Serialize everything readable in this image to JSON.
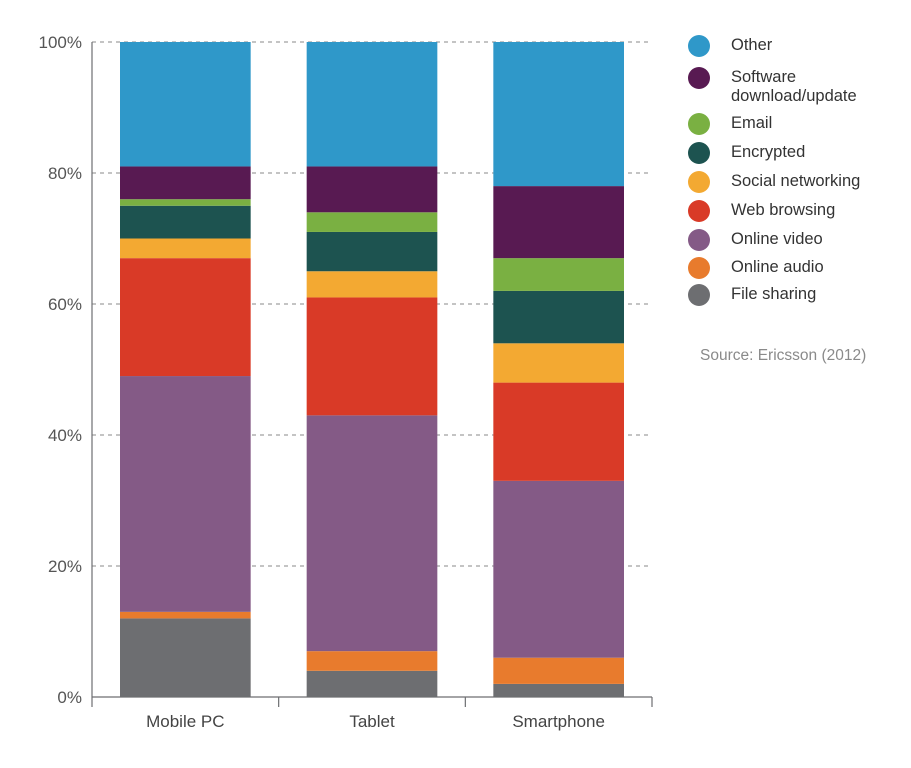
{
  "chart_data": {
    "type": "bar",
    "stacked": true,
    "title": "",
    "xlabel": "",
    "ylabel": "",
    "ylim": [
      0,
      100
    ],
    "yticks": [
      "0%",
      "20%",
      "40%",
      "60%",
      "80%",
      "100%"
    ],
    "grid": "horizontal dashed",
    "legend_position": "right",
    "categories": [
      "Mobile PC",
      "Tablet",
      "Smartphone"
    ],
    "series": [
      {
        "name": "File sharing",
        "color": "#6d6e71",
        "values": [
          12,
          4,
          2
        ]
      },
      {
        "name": "Online audio",
        "color": "#e87b2d",
        "values": [
          1,
          3,
          4
        ]
      },
      {
        "name": "Online video",
        "color": "#845a86",
        "values": [
          36,
          36,
          27
        ]
      },
      {
        "name": "Web browsing",
        "color": "#d93a27",
        "values": [
          18,
          18,
          15
        ]
      },
      {
        "name": "Social networking",
        "color": "#f3a932",
        "values": [
          3,
          4,
          6
        ]
      },
      {
        "name": "Encrypted",
        "color": "#1d5350",
        "values": [
          5,
          6,
          8
        ]
      },
      {
        "name": "Email",
        "color": "#7ab042",
        "values": [
          1,
          3,
          5
        ]
      },
      {
        "name": "Software download/update",
        "color": "#581a52",
        "values": [
          5,
          7,
          11
        ]
      },
      {
        "name": "Other",
        "color": "#2f98c9",
        "values": [
          19,
          19,
          22
        ]
      }
    ]
  },
  "legend": [
    {
      "label": "Other",
      "color": "#2f98c9"
    },
    {
      "label": "Software download/update",
      "color": "#581a52"
    },
    {
      "label": "Email",
      "color": "#7ab042"
    },
    {
      "label": "Encrypted",
      "color": "#1d5350"
    },
    {
      "label": "Social networking",
      "color": "#f3a932"
    },
    {
      "label": "Web browsing",
      "color": "#d93a27"
    },
    {
      "label": "Online video",
      "color": "#845a86"
    },
    {
      "label": "Online audio",
      "color": "#e87b2d"
    },
    {
      "label": "File sharing",
      "color": "#6d6e71"
    }
  ],
  "source": "Source: Ericsson (2012)"
}
